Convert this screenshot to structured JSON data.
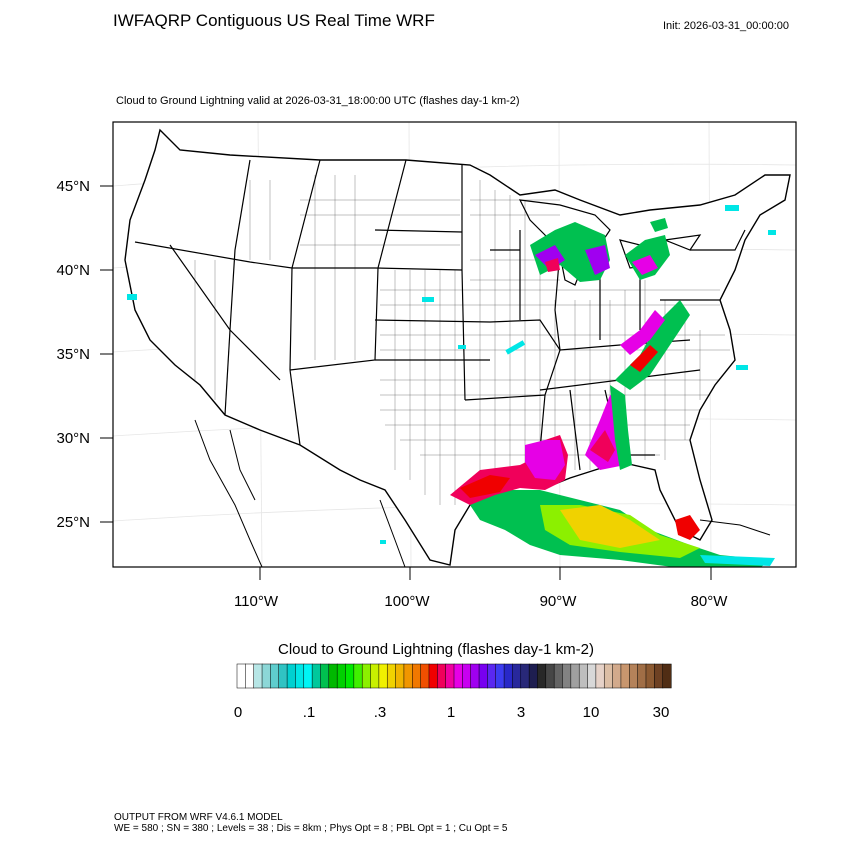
{
  "header": {
    "title": "IWFAQRP Contiguous US Real Time WRF",
    "init": "Init: 2026-03-31_00:00:00",
    "subtitle": "Cloud to Ground Lightning valid at 2026-03-31_18:00:00 UTC   (flashes day-1 km-2)"
  },
  "map": {
    "lat_labels": [
      "45°N",
      "40°N",
      "35°N",
      "30°N",
      "25°N"
    ],
    "lon_labels": [
      "110°W",
      "100°W",
      "90°W",
      "80°W"
    ]
  },
  "colorbar": {
    "title": "Cloud to Ground Lightning  (flashes day-1 km-2)",
    "ticks": [
      "0",
      ".1",
      ".3",
      "1",
      "3",
      "10",
      "30"
    ],
    "colors": [
      "#ffffff",
      "#ffffff",
      "#b7e6e6",
      "#8cd7d7",
      "#5fcdcd",
      "#30c3c3",
      "#00d0d0",
      "#00e6e6",
      "#00f5f5",
      "#00c89c",
      "#00c050",
      "#00b800",
      "#00d000",
      "#00e800",
      "#40f000",
      "#8cf000",
      "#c8f000",
      "#f0f000",
      "#f0d200",
      "#f0b400",
      "#f09600",
      "#f07800",
      "#f05000",
      "#f00000",
      "#f0005a",
      "#f000a0",
      "#e600e6",
      "#c800f0",
      "#a000f0",
      "#7800f0",
      "#5a28f0",
      "#3c3cf0",
      "#2828c8",
      "#28289c",
      "#282878",
      "#1e1e50",
      "#282828",
      "#464646",
      "#646464",
      "#828282",
      "#a0a0a0",
      "#bebebe",
      "#d8d8d8",
      "#e6d2c8",
      "#dcbea5",
      "#d2aa8c",
      "#c8966e",
      "#b4825a",
      "#a06e46",
      "#8c5a32",
      "#6e4123",
      "#502d14"
    ]
  },
  "footer": {
    "line1": "OUTPUT FROM WRF V4.6.1 MODEL",
    "line2": "WE = 580 ; SN = 380 ; Levels = 38 ; Dis = 8km ; Phys Opt = 8 ; PBL Opt = 1 ; Cu Opt = 5"
  }
}
